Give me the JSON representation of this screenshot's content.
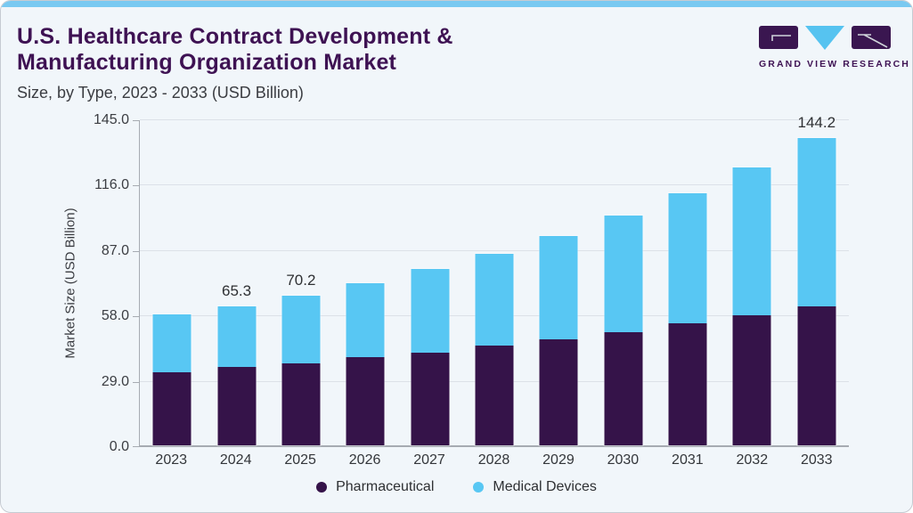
{
  "page": {
    "title_line1": "U.S. Healthcare Contract Development &",
    "title_line2": "Manufacturing Organization Market",
    "subtitle": "Size, by Type, 2023 - 2033 (USD Billion)",
    "brand_name": "GRAND VIEW RESEARCH"
  },
  "colors": {
    "accent_top_bar": "#79c9f1",
    "title": "#3e1253",
    "background": "#f1f6fa",
    "gridline": "#dce1e8",
    "axis": "#a6abb2",
    "pharmaceutical": "#351349",
    "medical_devices": "#58c7f3"
  },
  "chart_data": {
    "type": "bar",
    "stacked": true,
    "title": "U.S. Healthcare Contract Development & Manufacturing Organization Market Size, by Type, 2023 - 2033 (USD Billion)",
    "xlabel": "",
    "ylabel": "Market Size (USD Billion)",
    "categories": [
      "2023",
      "2024",
      "2025",
      "2026",
      "2027",
      "2028",
      "2029",
      "2030",
      "2031",
      "2032",
      "2033"
    ],
    "series": [
      {
        "name": "Pharmaceutical",
        "color": "#351349",
        "values": [
          34.3,
          36.6,
          38.5,
          41.3,
          43.6,
          46.9,
          49.9,
          53.3,
          57.1,
          61.0,
          65.1
        ]
      },
      {
        "name": "Medical Devices",
        "color": "#58c7f3",
        "values": [
          27.3,
          28.7,
          31.7,
          34.8,
          39.0,
          43.1,
          48.2,
          54.5,
          61.3,
          69.6,
          79.1
        ]
      }
    ],
    "totals": [
      61.6,
      65.3,
      70.2,
      76.1,
      82.6,
      90.0,
      98.1,
      107.8,
      118.4,
      130.6,
      144.2
    ],
    "data_labels": [
      "",
      "65.3",
      "70.2",
      "",
      "",
      "",
      "",
      "",
      "",
      "",
      "144.2"
    ],
    "yticks": [
      0,
      29,
      58,
      87,
      116,
      145
    ],
    "ytick_labels": [
      "0.0",
      "29.0",
      "58.0",
      "87.0",
      "116.0",
      "145.0"
    ],
    "ylim": [
      0,
      145
    ],
    "grid": true,
    "legend_position": "bottom"
  }
}
